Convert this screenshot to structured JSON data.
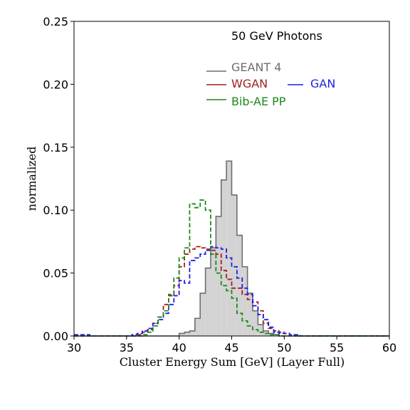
{
  "chart_data": {
    "type": "histogram",
    "title": "50 GeV Photons",
    "xlabel": "Cluster Energy Sum [GeV] (Layer Full)",
    "ylabel": "normalized",
    "xlim": [
      30,
      60
    ],
    "ylim": [
      0,
      0.25
    ],
    "x_ticks": [
      "30",
      "35",
      "40",
      "45",
      "50",
      "55",
      "60"
    ],
    "y_ticks": [
      "0.00",
      "0.05",
      "0.10",
      "0.15",
      "0.20",
      "0.25"
    ],
    "grid": false,
    "legend_position": "top-right",
    "bin_edges": [
      30,
      30.5,
      31,
      31.5,
      32,
      32.5,
      33,
      33.5,
      34,
      34.5,
      35,
      35.5,
      36,
      36.5,
      37,
      37.5,
      38,
      38.5,
      39,
      39.5,
      40,
      40.5,
      41,
      41.5,
      42,
      42.5,
      43,
      43.5,
      44,
      44.5,
      45,
      45.5,
      46,
      46.5,
      47,
      47.5,
      48,
      48.5,
      49,
      49.5,
      50,
      50.5,
      51,
      51.5,
      52,
      52.5,
      53,
      53.5,
      54,
      54.5,
      55,
      55.5,
      56,
      56.5,
      57,
      57.5,
      58,
      58.5,
      59,
      59.5,
      60
    ],
    "series": [
      {
        "name": "GEANT 4",
        "color": "#6e6e6e",
        "fill": "#d3d3d3",
        "style": "solid-filled",
        "values": [
          0,
          0,
          0,
          0,
          0,
          0,
          0,
          0,
          0,
          0,
          0,
          0,
          0,
          0,
          0,
          0,
          0,
          0,
          0,
          0,
          0.002,
          0.003,
          0.004,
          0.014,
          0.034,
          0.054,
          0.07,
          0.095,
          0.124,
          0.139,
          0.112,
          0.08,
          0.055,
          0.034,
          0.02,
          0.009,
          0.004,
          0.002,
          0.001,
          0,
          0,
          0,
          0,
          0,
          0,
          0,
          0,
          0,
          0,
          0,
          0,
          0,
          0,
          0,
          0,
          0,
          0,
          0,
          0,
          0
        ]
      },
      {
        "name": "WGAN",
        "color": "#a31f1f",
        "style": "dashed",
        "values": [
          0,
          0,
          0,
          0,
          0,
          0,
          0,
          0,
          0,
          0,
          0,
          0,
          0.001,
          0.003,
          0.005,
          0.01,
          0.015,
          0.025,
          0.032,
          0.04,
          0.055,
          0.065,
          0.069,
          0.071,
          0.07,
          0.069,
          0.068,
          0.065,
          0.052,
          0.045,
          0.038,
          0.038,
          0.033,
          0.029,
          0.027,
          0.02,
          0.01,
          0.006,
          0.004,
          0.003,
          0.002,
          0.001,
          0,
          0,
          0,
          0,
          0,
          0,
          0,
          0,
          0,
          0,
          0,
          0,
          0,
          0,
          0,
          0,
          0,
          0
        ]
      },
      {
        "name": "GAN",
        "color": "#1f1fe0",
        "style": "dashed",
        "values": [
          0.001,
          0.001,
          0.001,
          0,
          0,
          0,
          0,
          0,
          0,
          0,
          0,
          0.001,
          0.002,
          0.004,
          0.006,
          0.01,
          0.013,
          0.018,
          0.025,
          0.032,
          0.044,
          0.042,
          0.06,
          0.062,
          0.065,
          0.068,
          0.071,
          0.07,
          0.069,
          0.062,
          0.055,
          0.046,
          0.038,
          0.033,
          0.024,
          0.017,
          0.013,
          0.007,
          0.003,
          0.002,
          0.002,
          0.001,
          0.001,
          0,
          0,
          0,
          0,
          0,
          0,
          0,
          0,
          0,
          0,
          0,
          0,
          0,
          0,
          0,
          0,
          0
        ]
      },
      {
        "name": "Bib-AE PP",
        "color": "#1b8a1b",
        "style": "dashed",
        "values": [
          0,
          0,
          0,
          0,
          0,
          0,
          0,
          0,
          0,
          0,
          0,
          0,
          0,
          0.001,
          0.003,
          0.008,
          0.015,
          0.02,
          0.033,
          0.046,
          0.062,
          0.07,
          0.105,
          0.102,
          0.108,
          0.1,
          0.065,
          0.05,
          0.04,
          0.036,
          0.03,
          0.018,
          0.012,
          0.008,
          0.005,
          0.003,
          0.002,
          0.001,
          0.001,
          0,
          0,
          0,
          0,
          0,
          0,
          0,
          0,
          0,
          0,
          0,
          0,
          0,
          0,
          0,
          0,
          0,
          0,
          0,
          0,
          0
        ]
      }
    ]
  }
}
